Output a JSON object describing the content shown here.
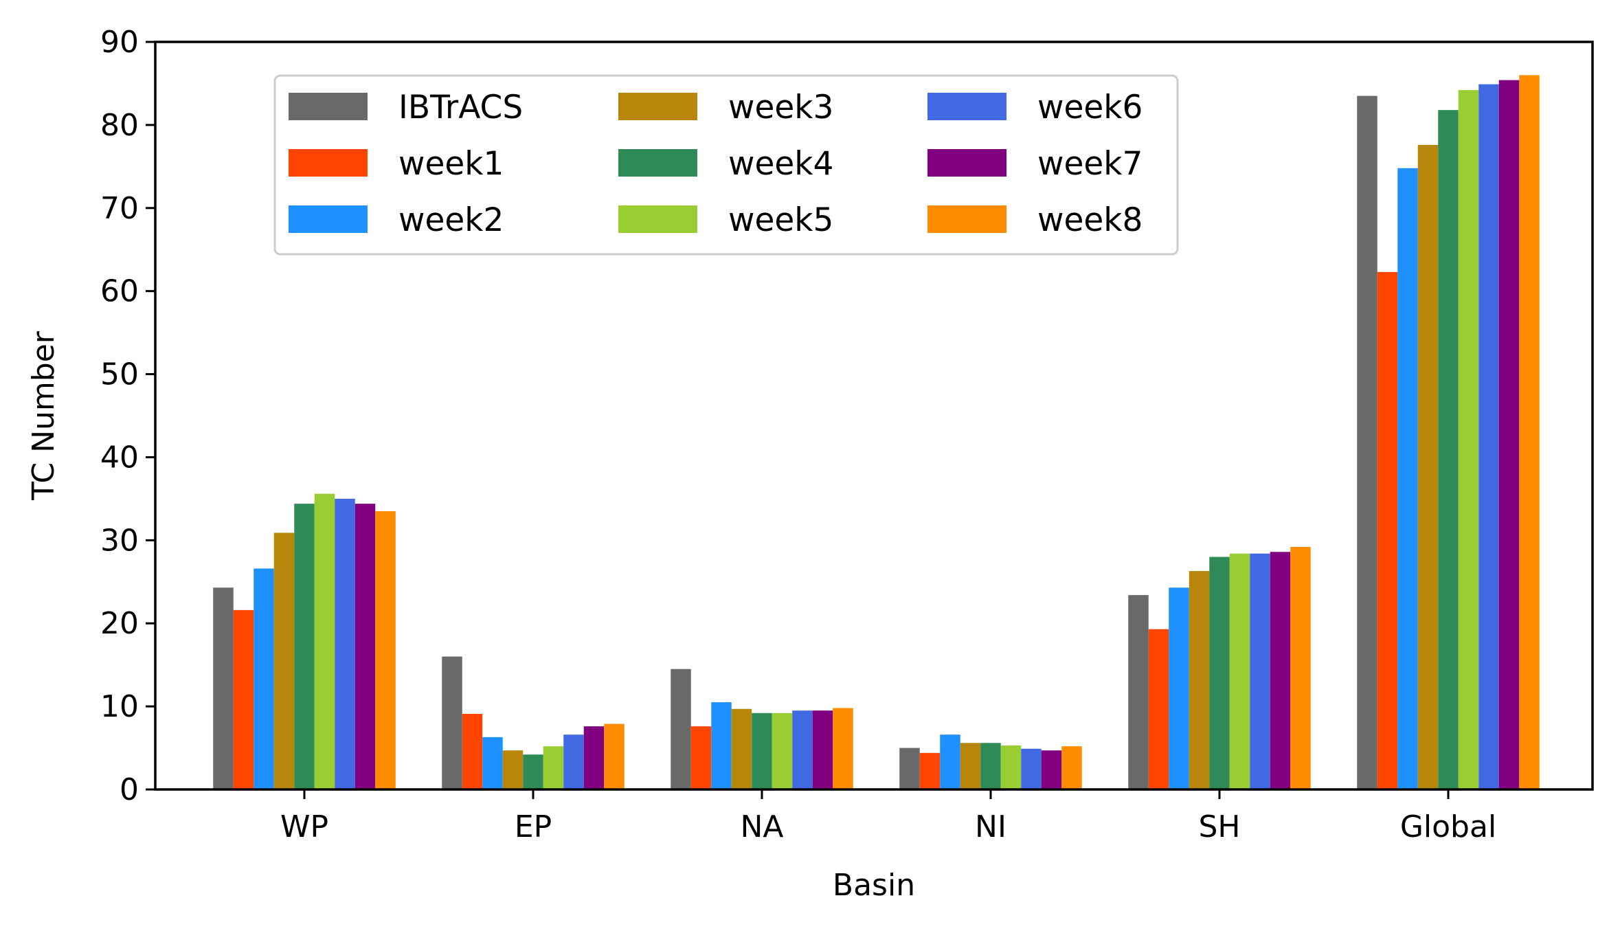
{
  "chart_data": {
    "type": "bar",
    "categories": [
      "WP",
      "EP",
      "NA",
      "NI",
      "SH",
      "Global"
    ],
    "xlabel": "Basin",
    "ylabel": "TC Number",
    "ylim": [
      0,
      90
    ],
    "yticks": [
      "0",
      "10",
      "20",
      "30",
      "40",
      "50",
      "60",
      "70",
      "80",
      "90"
    ],
    "grid": false,
    "legend": {
      "placement": "upper-left",
      "columns": 3
    },
    "series": [
      {
        "name": "IBTrACS",
        "color": "#696969",
        "values": [
          24.3,
          16.0,
          14.5,
          5.0,
          23.4,
          83.5
        ]
      },
      {
        "name": "week1",
        "color": "#FF4500",
        "values": [
          21.6,
          9.1,
          7.6,
          4.4,
          19.3,
          62.3
        ]
      },
      {
        "name": "week2",
        "color": "#1E90FF",
        "values": [
          26.6,
          6.3,
          10.5,
          6.6,
          24.3,
          74.8
        ]
      },
      {
        "name": "week3",
        "color": "#B8860B",
        "values": [
          30.9,
          4.7,
          9.7,
          5.6,
          26.3,
          77.6
        ]
      },
      {
        "name": "week4",
        "color": "#2E8B57",
        "values": [
          34.4,
          4.2,
          9.2,
          5.6,
          28.0,
          81.8
        ]
      },
      {
        "name": "week5",
        "color": "#9ACD32",
        "values": [
          35.6,
          5.2,
          9.2,
          5.3,
          28.4,
          84.2
        ]
      },
      {
        "name": "week6",
        "color": "#4169E1",
        "values": [
          35.0,
          6.6,
          9.5,
          4.9,
          28.4,
          84.9
        ]
      },
      {
        "name": "week7",
        "color": "#800080",
        "values": [
          34.4,
          7.6,
          9.5,
          4.7,
          28.6,
          85.4
        ]
      },
      {
        "name": "week8",
        "color": "#FF8C00",
        "values": [
          33.5,
          7.9,
          9.8,
          5.2,
          29.2,
          86.0
        ]
      }
    ]
  }
}
